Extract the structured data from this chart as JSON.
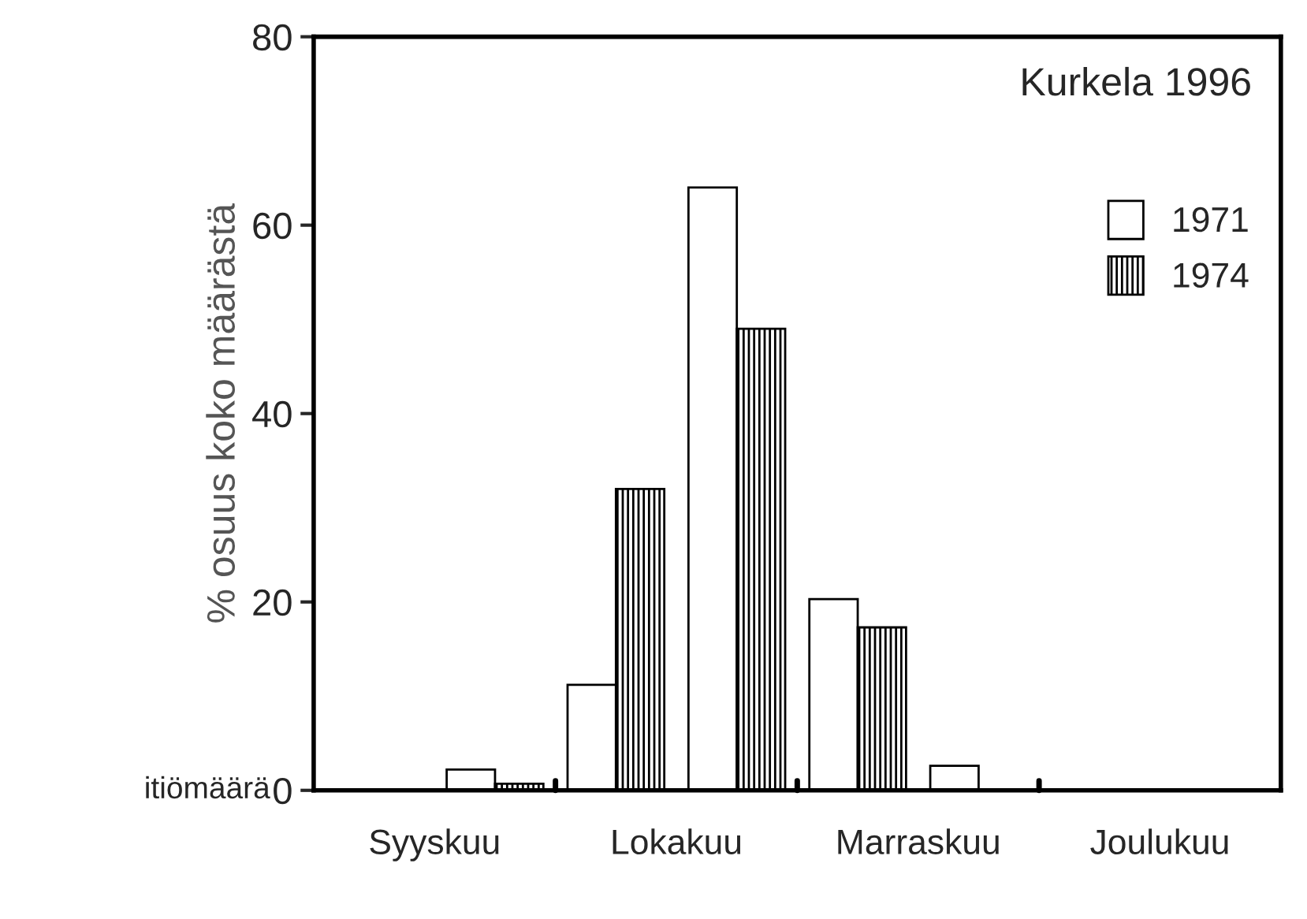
{
  "chart_data": {
    "type": "bar",
    "categories": [
      "Syyskuu",
      "Lokakuu",
      "Marraskuu",
      "Joulukuu"
    ],
    "series": [
      {
        "name": "1971",
        "color": "#ffffff",
        "values": [
          null,
          11.2,
          20.3,
          null
        ]
      },
      {
        "name": "1974",
        "color": "#000000",
        "values": [
          null,
          32,
          17.3,
          null
        ]
      },
      {
        "color": "#ffffff",
        "values": [
          2.2,
          64,
          2.6,
          null
        ]
      },
      {
        "color": "#000000",
        "values": [
          0.7,
          49,
          null,
          null
        ]
      }
    ],
    "ylabel": "% osuus koko määrästä",
    "ylim": [
      0,
      80
    ],
    "yticks": [
      0,
      20,
      40,
      60,
      80
    ],
    "annotations": [
      "Kurkela 1996",
      "itiömäärä"
    ],
    "grid": false,
    "legend": "right"
  }
}
